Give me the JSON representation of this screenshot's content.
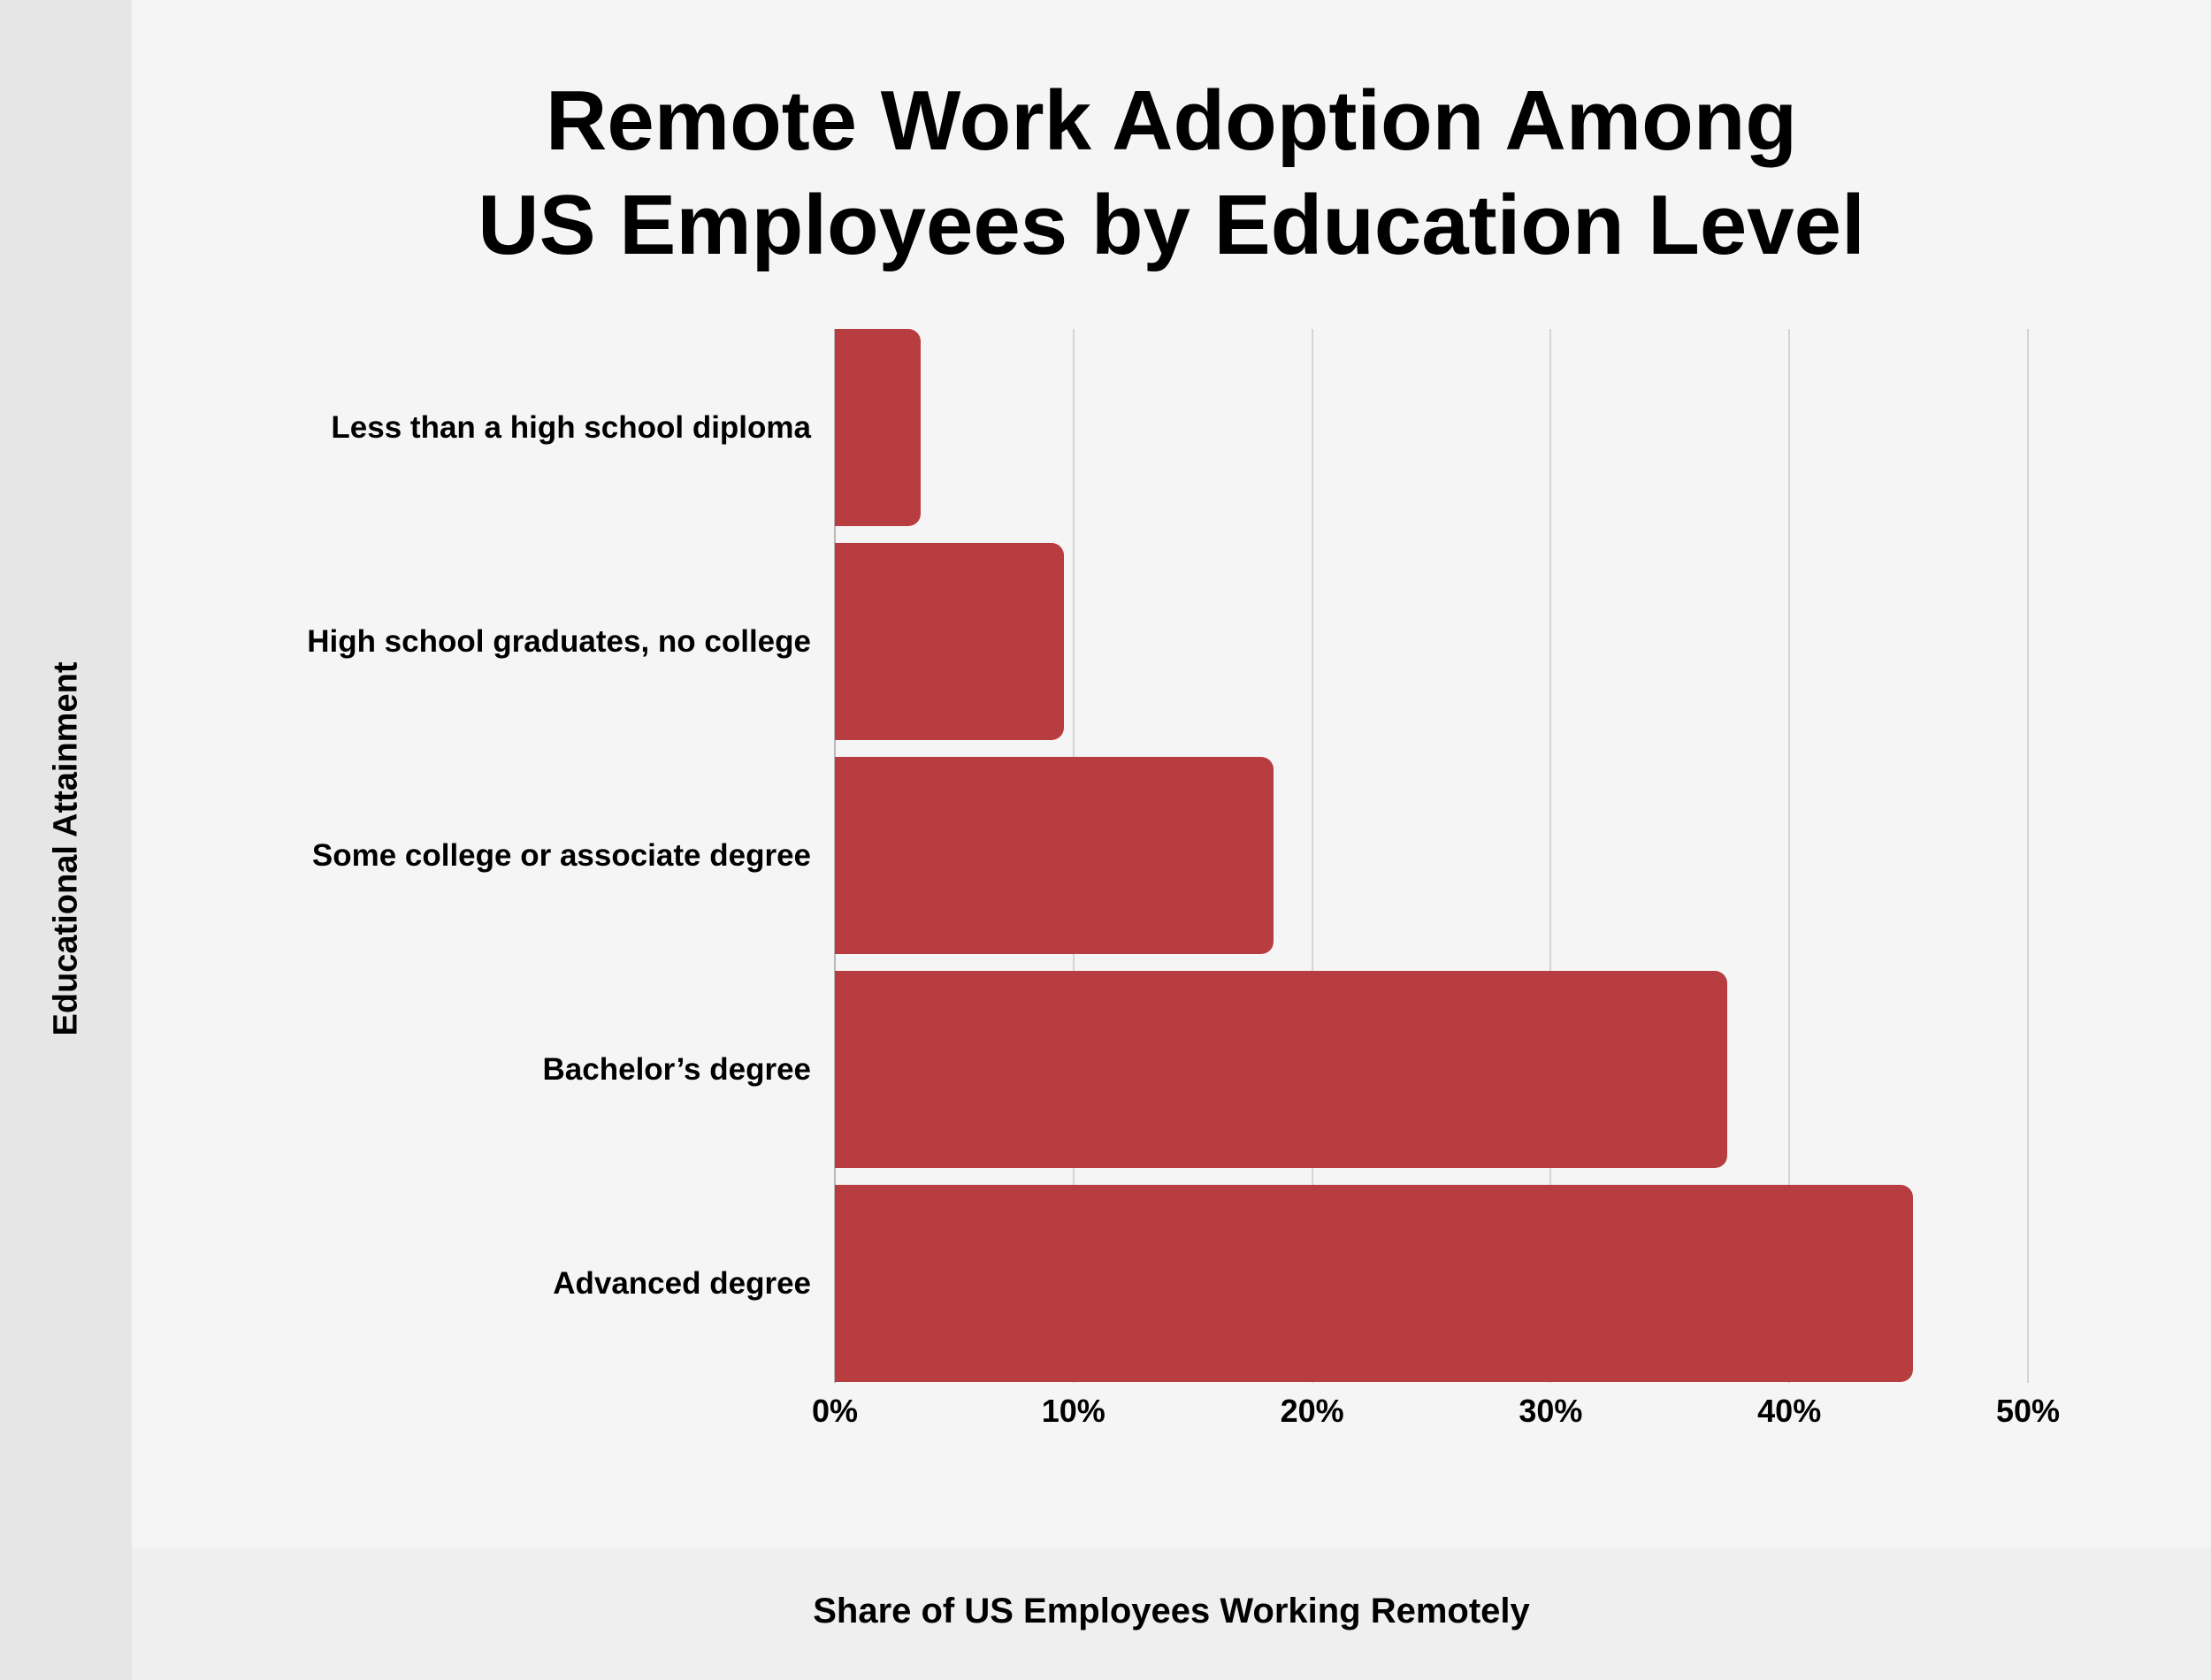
{
  "title_lines": [
    "Remote Work Adoption Among",
    "US Employees by Education Level"
  ],
  "axis": {
    "x_label": "Share of US Employees Working Remotely",
    "y_label": "Educational Attainment",
    "ticks": [
      "0%",
      "10%",
      "20%",
      "30%",
      "40%",
      "50%"
    ]
  },
  "colors": {
    "bar": "#b83d40",
    "background": "#f5f5f5",
    "left_strip": "#e6e6e6",
    "bottom_band": "#efefef",
    "gridline": "#d4d4d4"
  },
  "chart_data": {
    "type": "bar",
    "orientation": "horizontal",
    "title": "Remote Work Adoption Among US Employees by Education Level",
    "xlabel": "Share of US Employees Working Remotely",
    "ylabel": "Educational Attainment",
    "categories": [
      "Less than a high school diploma",
      "High school graduates, no college",
      "Some college or associate degree",
      "Bachelor’s degree",
      "Advanced degree"
    ],
    "values": [
      3.6,
      9.6,
      18.4,
      37.4,
      45.2
    ],
    "unit": "%",
    "xlim": [
      0,
      50
    ],
    "xticks": [
      0,
      10,
      20,
      30,
      40,
      50
    ],
    "grid": "vertical",
    "legend": "none"
  }
}
